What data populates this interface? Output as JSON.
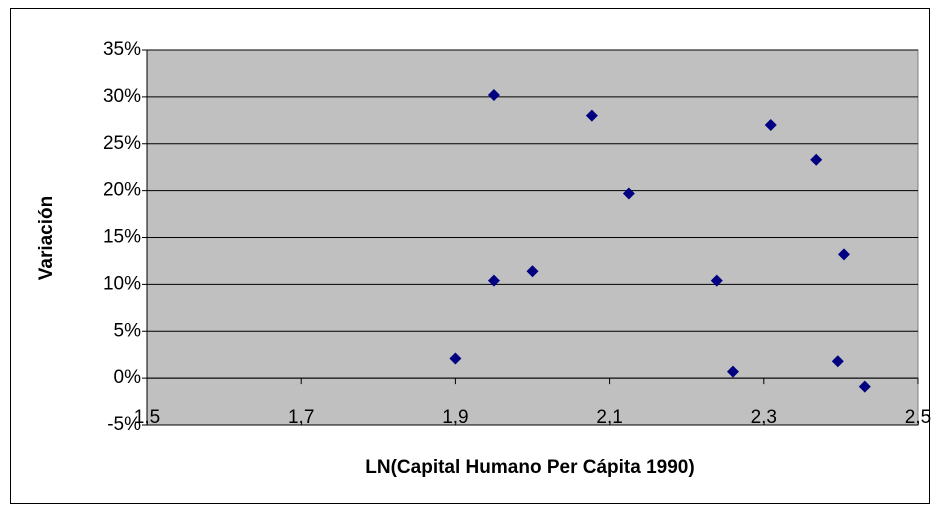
{
  "chart_data": {
    "type": "scatter",
    "x_label": "LN(Capital Humano Per Cápita 1990)",
    "y_label": "Variación",
    "series": [
      {
        "color": "#000080",
        "x": [
          1.9,
          1.95,
          1.95,
          2.0,
          2.077,
          2.125,
          2.239,
          2.26,
          2.309,
          2.368,
          2.396,
          2.404,
          2.431
        ],
        "values": [
          2.1,
          30.2,
          10.4,
          11.4,
          28.0,
          19.7,
          10.4,
          0.7,
          27.0,
          23.3,
          1.8,
          13.2,
          -0.9
        ]
      }
    ],
    "xlim": [
      1.5,
      2.5
    ],
    "xticks": [
      {
        "value": 1.5,
        "label": "1,5"
      },
      {
        "value": 1.7,
        "label": "1,7"
      },
      {
        "value": 1.9,
        "label": "1,9"
      },
      {
        "value": 2.1,
        "label": "2,1"
      },
      {
        "value": 2.3,
        "label": "2,3"
      },
      {
        "value": 2.5,
        "label": "2,5"
      }
    ],
    "ylim": [
      -5,
      35
    ],
    "yticks": [
      {
        "value": -5,
        "label": "-5%"
      },
      {
        "value": 0,
        "label": "0%"
      },
      {
        "value": 5,
        "label": "5%"
      },
      {
        "value": 10,
        "label": "10%"
      },
      {
        "value": 15,
        "label": "15%"
      },
      {
        "value": 20,
        "label": "20%"
      },
      {
        "value": 25,
        "label": "25%"
      },
      {
        "value": 30,
        "label": "30%"
      },
      {
        "value": 35,
        "label": "35%"
      }
    ],
    "grid": true,
    "plot_background": "#c0c0c0"
  }
}
